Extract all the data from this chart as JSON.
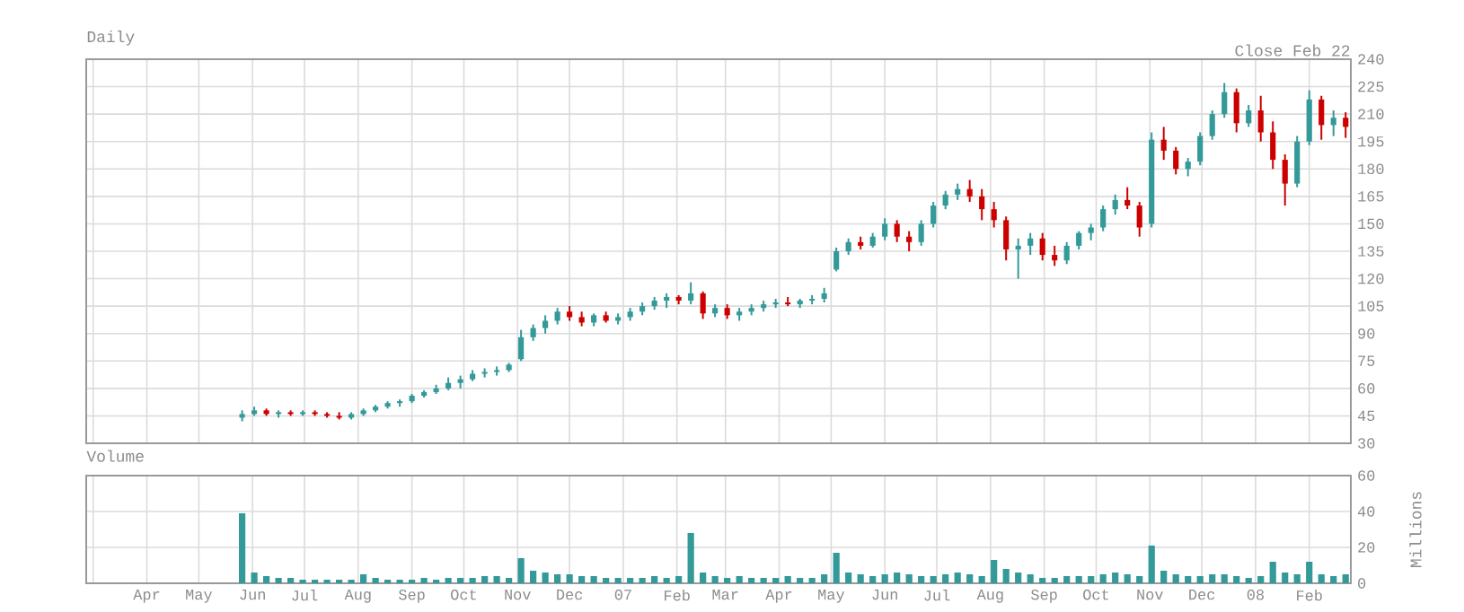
{
  "chart_data": [
    {
      "type": "candlestick",
      "title": "Daily",
      "annotations": [
        "Close Feb 22"
      ],
      "x": [
        "2006-05-26",
        "2006-06-02",
        "2006-06-09",
        "2006-06-16",
        "2006-06-23",
        "2006-06-30",
        "2006-07-07",
        "2006-07-14",
        "2006-07-21",
        "2006-07-28",
        "2006-08-04",
        "2006-08-11",
        "2006-08-18",
        "2006-08-25",
        "2006-09-01",
        "2006-09-08",
        "2006-09-15",
        "2006-09-22",
        "2006-09-29",
        "2006-10-06",
        "2006-10-13",
        "2006-10-20",
        "2006-10-27",
        "2006-11-03",
        "2006-11-10",
        "2006-11-17",
        "2006-11-24",
        "2006-12-01",
        "2006-12-08",
        "2006-12-15",
        "2006-12-22",
        "2006-12-29",
        "2007-01-05",
        "2007-01-12",
        "2007-01-19",
        "2007-01-26",
        "2007-02-02",
        "2007-02-09",
        "2007-02-16",
        "2007-02-23",
        "2007-03-02",
        "2007-03-09",
        "2007-03-16",
        "2007-03-23",
        "2007-03-30",
        "2007-04-06",
        "2007-04-13",
        "2007-04-20",
        "2007-04-27",
        "2007-05-04",
        "2007-05-11",
        "2007-05-18",
        "2007-05-25",
        "2007-06-01",
        "2007-06-08",
        "2007-06-15",
        "2007-06-22",
        "2007-06-29",
        "2007-07-06",
        "2007-07-13",
        "2007-07-20",
        "2007-07-27",
        "2007-08-03",
        "2007-08-10",
        "2007-08-17",
        "2007-08-24",
        "2007-08-31",
        "2007-09-07",
        "2007-09-14",
        "2007-09-21",
        "2007-09-28",
        "2007-10-05",
        "2007-10-12",
        "2007-10-19",
        "2007-10-26",
        "2007-11-02",
        "2007-11-09",
        "2007-11-16",
        "2007-11-23",
        "2007-11-30",
        "2007-12-07",
        "2007-12-14",
        "2007-12-21",
        "2007-12-28",
        "2008-01-04",
        "2008-01-11",
        "2008-01-18",
        "2008-01-25",
        "2008-02-01",
        "2008-02-08",
        "2008-02-15",
        "2008-02-22"
      ],
      "ohlc": [
        [
          44,
          48,
          42,
          46
        ],
        [
          46,
          50,
          45,
          48
        ],
        [
          48,
          49,
          45,
          46
        ],
        [
          46,
          48,
          44,
          47
        ],
        [
          47,
          48,
          45,
          46
        ],
        [
          46,
          48,
          45,
          47
        ],
        [
          47,
          48,
          45,
          46
        ],
        [
          46,
          47,
          44,
          45
        ],
        [
          45,
          47,
          43,
          44
        ],
        [
          44,
          47,
          43,
          46
        ],
        [
          46,
          49,
          45,
          48
        ],
        [
          48,
          51,
          47,
          50
        ],
        [
          50,
          53,
          49,
          52
        ],
        [
          52,
          54,
          50,
          53
        ],
        [
          53,
          57,
          52,
          56
        ],
        [
          56,
          59,
          55,
          58
        ],
        [
          58,
          62,
          57,
          60
        ],
        [
          60,
          66,
          59,
          63
        ],
        [
          63,
          67,
          60,
          65
        ],
        [
          65,
          70,
          64,
          68
        ],
        [
          68,
          71,
          66,
          69
        ],
        [
          69,
          72,
          67,
          70
        ],
        [
          70,
          74,
          69,
          73
        ],
        [
          76,
          92,
          75,
          88
        ],
        [
          88,
          95,
          86,
          93
        ],
        [
          93,
          100,
          90,
          97
        ],
        [
          97,
          104,
          95,
          102
        ],
        [
          102,
          105,
          97,
          99
        ],
        [
          99,
          102,
          94,
          96
        ],
        [
          96,
          101,
          94,
          100
        ],
        [
          100,
          102,
          96,
          97
        ],
        [
          97,
          101,
          95,
          99
        ],
        [
          99,
          104,
          97,
          102
        ],
        [
          102,
          107,
          100,
          105
        ],
        [
          105,
          110,
          103,
          108
        ],
        [
          108,
          112,
          104,
          110
        ],
        [
          110,
          111,
          106,
          108
        ],
        [
          108,
          118,
          106,
          112
        ],
        [
          112,
          113,
          98,
          101
        ],
        [
          101,
          106,
          99,
          104
        ],
        [
          104,
          106,
          98,
          100
        ],
        [
          100,
          104,
          97,
          102
        ],
        [
          102,
          106,
          100,
          104
        ],
        [
          104,
          108,
          102,
          106
        ],
        [
          106,
          109,
          104,
          107
        ],
        [
          107,
          110,
          105,
          106
        ],
        [
          106,
          109,
          104,
          108
        ],
        [
          108,
          111,
          106,
          109
        ],
        [
          109,
          115,
          107,
          112
        ],
        [
          125,
          137,
          124,
          135
        ],
        [
          135,
          142,
          133,
          140
        ],
        [
          140,
          143,
          136,
          138
        ],
        [
          138,
          145,
          137,
          143
        ],
        [
          143,
          153,
          141,
          150
        ],
        [
          150,
          152,
          140,
          143
        ],
        [
          143,
          146,
          135,
          140
        ],
        [
          140,
          152,
          138,
          150
        ],
        [
          150,
          162,
          148,
          160
        ],
        [
          160,
          168,
          158,
          166
        ],
        [
          166,
          172,
          163,
          169
        ],
        [
          169,
          174,
          162,
          165
        ],
        [
          165,
          169,
          152,
          158
        ],
        [
          158,
          162,
          148,
          152
        ],
        [
          152,
          154,
          130,
          136
        ],
        [
          136,
          142,
          120,
          138
        ],
        [
          138,
          145,
          133,
          142
        ],
        [
          142,
          145,
          130,
          133
        ],
        [
          133,
          138,
          127,
          130
        ],
        [
          130,
          140,
          128,
          138
        ],
        [
          138,
          146,
          136,
          145
        ],
        [
          145,
          150,
          141,
          148
        ],
        [
          148,
          160,
          146,
          158
        ],
        [
          158,
          166,
          155,
          163
        ],
        [
          163,
          170,
          158,
          160
        ],
        [
          160,
          162,
          143,
          148
        ],
        [
          150,
          200,
          148,
          196
        ],
        [
          196,
          203,
          185,
          190
        ],
        [
          190,
          192,
          177,
          180
        ],
        [
          180,
          186,
          176,
          184
        ],
        [
          184,
          200,
          182,
          198
        ],
        [
          198,
          212,
          196,
          210
        ],
        [
          210,
          227,
          208,
          222
        ],
        [
          222,
          224,
          200,
          205
        ],
        [
          205,
          215,
          203,
          212
        ],
        [
          212,
          220,
          195,
          200
        ],
        [
          200,
          206,
          180,
          185
        ],
        [
          185,
          188,
          160,
          172
        ],
        [
          172,
          198,
          170,
          195
        ],
        [
          195,
          223,
          193,
          218
        ],
        [
          218,
          220,
          196,
          204
        ],
        [
          204,
          212,
          198,
          208
        ],
        [
          208,
          211,
          197,
          203
        ]
      ],
      "xlim": [
        "2006-02-25",
        "2008-02-25"
      ],
      "ylim": [
        30,
        240
      ],
      "yticks": [
        30,
        45,
        60,
        75,
        90,
        105,
        120,
        135,
        150,
        165,
        180,
        195,
        210,
        225,
        240
      ],
      "xticks": [
        {
          "value": "2006-03-01",
          "label": null
        },
        {
          "value": "2006-04-01",
          "label": null
        },
        {
          "value": "2006-05-01",
          "label": null
        },
        {
          "value": "2006-06-01",
          "label": null
        },
        {
          "value": "2006-07-01",
          "label": null
        },
        {
          "value": "2006-08-01",
          "label": null
        },
        {
          "value": "2006-09-01",
          "label": null
        },
        {
          "value": "2006-10-01",
          "label": null
        },
        {
          "value": "2006-11-01",
          "label": null
        },
        {
          "value": "2006-12-01",
          "label": null
        },
        {
          "value": "2007-01-01",
          "label": null
        },
        {
          "value": "2007-02-01",
          "label": null
        },
        {
          "value": "2007-03-01",
          "label": null
        },
        {
          "value": "2007-04-01",
          "label": null
        },
        {
          "value": "2007-05-01",
          "label": null
        },
        {
          "value": "2007-06-01",
          "label": null
        },
        {
          "value": "2007-07-01",
          "label": null
        },
        {
          "value": "2007-08-01",
          "label": null
        },
        {
          "value": "2007-09-01",
          "label": null
        },
        {
          "value": "2007-10-01",
          "label": null
        },
        {
          "value": "2007-11-01",
          "label": null
        },
        {
          "value": "2007-12-01",
          "label": null
        },
        {
          "value": "2008-01-01",
          "label": null
        },
        {
          "value": "2008-02-01",
          "label": null
        }
      ],
      "tick_labels": "y",
      "grid": true
    },
    {
      "type": "bar",
      "title": "Volume",
      "ylabel": "Millions",
      "color": "#339999",
      "x": [
        "2006-05-26",
        "2006-06-02",
        "2006-06-09",
        "2006-06-16",
        "2006-06-23",
        "2006-06-30",
        "2006-07-07",
        "2006-07-14",
        "2006-07-21",
        "2006-07-28",
        "2006-08-04",
        "2006-08-11",
        "2006-08-18",
        "2006-08-25",
        "2006-09-01",
        "2006-09-08",
        "2006-09-15",
        "2006-09-22",
        "2006-09-29",
        "2006-10-06",
        "2006-10-13",
        "2006-10-20",
        "2006-10-27",
        "2006-11-03",
        "2006-11-10",
        "2006-11-17",
        "2006-11-24",
        "2006-12-01",
        "2006-12-08",
        "2006-12-15",
        "2006-12-22",
        "2006-12-29",
        "2007-01-05",
        "2007-01-12",
        "2007-01-19",
        "2007-01-26",
        "2007-02-02",
        "2007-02-09",
        "2007-02-16",
        "2007-02-23",
        "2007-03-02",
        "2007-03-09",
        "2007-03-16",
        "2007-03-23",
        "2007-03-30",
        "2007-04-06",
        "2007-04-13",
        "2007-04-20",
        "2007-04-27",
        "2007-05-04",
        "2007-05-11",
        "2007-05-18",
        "2007-05-25",
        "2007-06-01",
        "2007-06-08",
        "2007-06-15",
        "2007-06-22",
        "2007-06-29",
        "2007-07-06",
        "2007-07-13",
        "2007-07-20",
        "2007-07-27",
        "2007-08-03",
        "2007-08-10",
        "2007-08-17",
        "2007-08-24",
        "2007-08-31",
        "2007-09-07",
        "2007-09-14",
        "2007-09-21",
        "2007-09-28",
        "2007-10-05",
        "2007-10-12",
        "2007-10-19",
        "2007-10-26",
        "2007-11-02",
        "2007-11-09",
        "2007-11-16",
        "2007-11-23",
        "2007-11-30",
        "2007-12-07",
        "2007-12-14",
        "2007-12-21",
        "2007-12-28",
        "2008-01-04",
        "2008-01-11",
        "2008-01-18",
        "2008-01-25",
        "2008-02-01",
        "2008-02-08",
        "2008-02-15",
        "2008-02-22"
      ],
      "values": [
        39,
        6,
        4,
        3,
        3,
        2,
        2,
        2,
        2,
        2,
        5,
        3,
        2,
        2,
        2,
        3,
        2,
        3,
        3,
        3,
        4,
        4,
        3,
        14,
        7,
        6,
        5,
        5,
        4,
        4,
        3,
        3,
        3,
        3,
        4,
        3,
        4,
        28,
        6,
        4,
        3,
        4,
        3,
        3,
        3,
        4,
        3,
        3,
        5,
        17,
        6,
        5,
        4,
        5,
        6,
        5,
        4,
        4,
        5,
        6,
        5,
        4,
        13,
        8,
        6,
        5,
        3,
        3,
        4,
        4,
        4,
        5,
        6,
        5,
        4,
        21,
        7,
        5,
        4,
        4,
        5,
        5,
        4,
        3,
        4,
        12,
        6,
        5,
        12,
        5,
        4,
        5
      ],
      "xlim": [
        "2006-02-25",
        "2008-02-25"
      ],
      "ylim": [
        0,
        60
      ],
      "yticks": [
        0,
        20,
        40,
        60
      ],
      "xticks": [
        {
          "value": "2006-03-01",
          "label": null
        },
        {
          "value": "2006-04-01",
          "label": "Apr"
        },
        {
          "value": "2006-05-01",
          "label": "May"
        },
        {
          "value": "2006-06-01",
          "label": "Jun"
        },
        {
          "value": "2006-07-01",
          "label": "Jul"
        },
        {
          "value": "2006-08-01",
          "label": "Aug"
        },
        {
          "value": "2006-09-01",
          "label": "Sep"
        },
        {
          "value": "2006-10-01",
          "label": "Oct"
        },
        {
          "value": "2006-11-01",
          "label": "Nov"
        },
        {
          "value": "2006-12-01",
          "label": "Dec"
        },
        {
          "value": "2007-01-01",
          "label": "07"
        },
        {
          "value": "2007-02-01",
          "label": "Feb"
        },
        {
          "value": "2007-03-01",
          "label": "Mar"
        },
        {
          "value": "2007-04-01",
          "label": "Apr"
        },
        {
          "value": "2007-05-01",
          "label": "May"
        },
        {
          "value": "2007-06-01",
          "label": "Jun"
        },
        {
          "value": "2007-07-01",
          "label": "Jul"
        },
        {
          "value": "2007-08-01",
          "label": "Aug"
        },
        {
          "value": "2007-09-01",
          "label": "Sep"
        },
        {
          "value": "2007-10-01",
          "label": "Oct"
        },
        {
          "value": "2007-11-01",
          "label": "Nov"
        },
        {
          "value": "2007-12-01",
          "label": "Dec"
        },
        {
          "value": "2008-01-01",
          "label": "08"
        },
        {
          "value": "2008-02-01",
          "label": "Feb"
        }
      ],
      "grid": true
    }
  ]
}
